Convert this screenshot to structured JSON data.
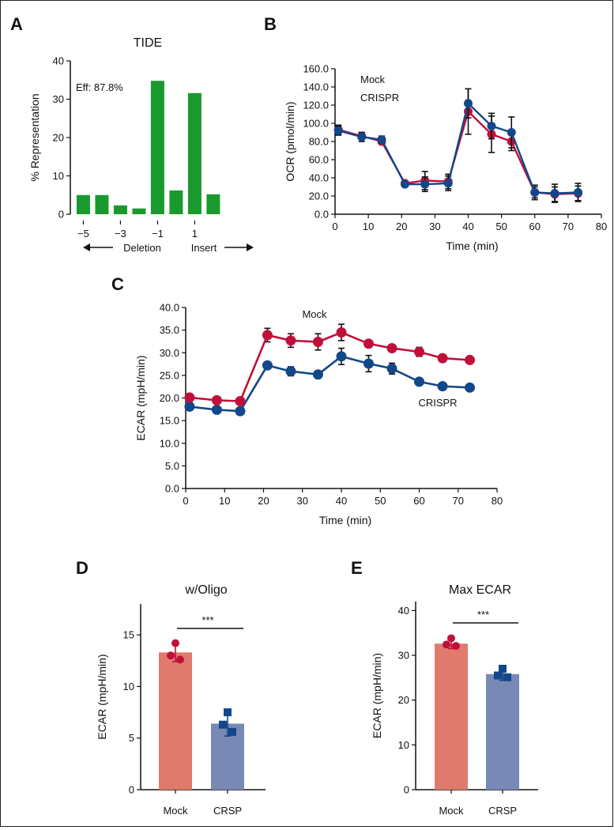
{
  "colors": {
    "mock": "#c0103a",
    "crispr": "#12478a",
    "tide_bar": "#1a9a2e",
    "mock_bar": "#e07a6c",
    "crsp_bar": "#7789b4",
    "axis": "#111111"
  },
  "chart_data": [
    {
      "id": "A",
      "panel": "A",
      "type": "bar",
      "title": "TIDE",
      "annotation": "Eff: 87.8%",
      "ylabel": "% Representation",
      "x": [
        -5,
        -4,
        -3,
        -2,
        -1,
        0,
        1,
        2
      ],
      "values": [
        5.0,
        5.0,
        2.3,
        1.5,
        34.8,
        6.2,
        31.6,
        5.2
      ],
      "xticks": [
        -5,
        -3,
        -1,
        1
      ],
      "xtick_labels": [
        "−5",
        "−3",
        "−1",
        "1"
      ],
      "yticks": [
        0,
        10,
        20,
        30,
        40
      ],
      "ylim": [
        0,
        40
      ],
      "xlim": [
        -5.7,
        2.6
      ],
      "left_label": "Deletion",
      "right_label": "Insert"
    },
    {
      "id": "B",
      "panel": "B",
      "type": "line",
      "xlabel": "Time (min)",
      "ylabel": "OCR (pmol/min)",
      "xlim": [
        0,
        80
      ],
      "ylim": [
        0,
        160
      ],
      "xticks": [
        0,
        10,
        20,
        30,
        40,
        50,
        60,
        70,
        80
      ],
      "yticks": [
        0,
        20,
        40,
        60,
        80,
        100,
        120,
        140,
        160
      ],
      "ytick_labels": [
        "0.0",
        "20.0",
        "40.0",
        "60.0",
        "80.0",
        "100.0",
        "120.0",
        "140.0",
        "160.0"
      ],
      "x": [
        1,
        8,
        14,
        21,
        27,
        34,
        40,
        47,
        53,
        60,
        66,
        73
      ],
      "series": [
        {
          "name": "Mock",
          "color_key": "mock",
          "values": [
            93,
            86,
            80,
            34,
            37,
            36,
            113,
            88,
            80,
            24,
            22,
            23
          ],
          "err": [
            5,
            4,
            3,
            2,
            10,
            8,
            25,
            20,
            10,
            6,
            8,
            8
          ]
        },
        {
          "name": "CRISPR",
          "color_key": "crispr",
          "values": [
            92,
            85,
            82,
            33,
            33,
            34,
            122,
            97,
            90,
            24,
            23,
            24
          ],
          "err": [
            5,
            5,
            4,
            2,
            8,
            8,
            16,
            14,
            17,
            8,
            10,
            10
          ]
        }
      ],
      "legend": [
        "Mock",
        "CRISPR"
      ],
      "legend_position": "top-left"
    },
    {
      "id": "C",
      "panel": "C",
      "type": "line",
      "xlabel": "Time (min)",
      "ylabel": "ECAR (mpH/min)",
      "xlim": [
        0,
        80
      ],
      "ylim": [
        0,
        40
      ],
      "xticks": [
        0,
        10,
        20,
        30,
        40,
        50,
        60,
        70,
        80
      ],
      "yticks": [
        0,
        5,
        10,
        15,
        20,
        25,
        30,
        35,
        40
      ],
      "ytick_labels": [
        "0.0",
        "5.0",
        "10.0",
        "15.0",
        "20.0",
        "25.0",
        "30.0",
        "35.0",
        "40.0"
      ],
      "x": [
        1,
        8,
        14,
        21,
        27,
        34,
        40,
        47,
        53,
        60,
        66,
        73
      ],
      "series": [
        {
          "name": "Mock",
          "color_key": "mock",
          "values": [
            20.1,
            19.5,
            19.3,
            33.9,
            32.7,
            32.4,
            34.5,
            32.0,
            31.0,
            30.2,
            28.8,
            28.4
          ],
          "err": [
            0.8,
            0.6,
            0.5,
            1.5,
            1.5,
            1.8,
            1.8,
            0.5,
            0.5,
            1.0,
            0.8,
            0.5
          ]
        },
        {
          "name": "CRISPR",
          "color_key": "crispr",
          "values": [
            18.1,
            17.4,
            17.1,
            27.2,
            25.9,
            25.2,
            29.2,
            27.6,
            26.5,
            23.6,
            22.6,
            22.3
          ],
          "err": [
            0.6,
            0.6,
            0.5,
            0.5,
            1.0,
            0.8,
            1.8,
            1.8,
            1.2,
            0.5,
            0.3,
            0.3
          ]
        }
      ],
      "labels": [
        "Mock",
        "CRISPR"
      ]
    },
    {
      "id": "D",
      "panel": "D",
      "type": "bar",
      "title": "w/Oligo",
      "ylabel": "ECAR (mpH/min)",
      "categories": [
        "Mock",
        "CRSP"
      ],
      "values": [
        13.3,
        6.4
      ],
      "err": [
        0.9,
        1.2
      ],
      "points": [
        [
          14.2,
          13.0,
          12.6
        ],
        [
          7.5,
          6.3,
          5.6
        ]
      ],
      "yticks": [
        0,
        5,
        10,
        15
      ],
      "ylim": [
        0,
        18
      ],
      "significance": "***"
    },
    {
      "id": "E",
      "panel": "E",
      "type": "bar",
      "title": "Max ECAR",
      "ylabel": "ECAR (mpH/min)",
      "categories": [
        "Mock",
        "CRSP"
      ],
      "values": [
        32.6,
        25.8
      ],
      "err": [
        1.1,
        1.4
      ],
      "points": [
        [
          33.8,
          32.4,
          32.1
        ],
        [
          27.0,
          25.5,
          25.1
        ]
      ],
      "yticks": [
        0,
        10,
        20,
        30,
        40
      ],
      "ylim": [
        0,
        42
      ],
      "significance": "***"
    }
  ]
}
